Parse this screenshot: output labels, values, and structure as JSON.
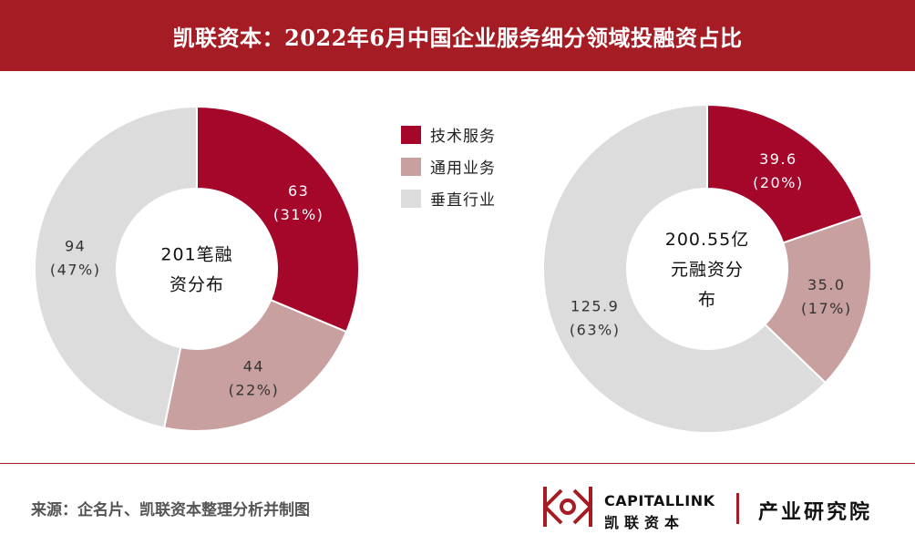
{
  "header": {
    "title": "凯联资本：2022年6月中国企业服务细分领域投融资占比"
  },
  "legend": {
    "items": [
      {
        "label": "技术服务",
        "color": "#a5072a"
      },
      {
        "label": "通用业务",
        "color": "#c9a0a0"
      },
      {
        "label": "垂直行业",
        "color": "#dcdcdc"
      }
    ]
  },
  "chart_data": [
    {
      "type": "pie",
      "variant": "donut",
      "center_label_lines": [
        "201笔融",
        "资分布"
      ],
      "categories": [
        "技术服务",
        "通用业务",
        "垂直行业"
      ],
      "values": [
        63,
        44,
        94
      ],
      "value_labels": [
        "63",
        "44",
        "94"
      ],
      "percent_labels": [
        "(31%)",
        "(22%)",
        "(47%)"
      ],
      "colors": [
        "#a5072a",
        "#c9a0a0",
        "#dcdcdc"
      ]
    },
    {
      "type": "pie",
      "variant": "donut",
      "center_label_lines": [
        "200.55亿",
        "元融资分",
        "布"
      ],
      "categories": [
        "技术服务",
        "通用业务",
        "垂直行业"
      ],
      "values": [
        39.6,
        35.0,
        125.9
      ],
      "value_labels": [
        "39.6",
        "35.0",
        "125.9"
      ],
      "percent_labels": [
        "(20%)",
        "(17%)",
        "(63%)"
      ],
      "colors": [
        "#a5072a",
        "#c9a0a0",
        "#dcdcdc"
      ]
    }
  ],
  "footer": {
    "source": "来源：企名片、凯联资本整理分析并制图",
    "logo_brand": "CAPITALLINK",
    "logo_cn": "凯联资本",
    "logo_institute": "产业研究院",
    "logo_color": "#a51c24"
  }
}
